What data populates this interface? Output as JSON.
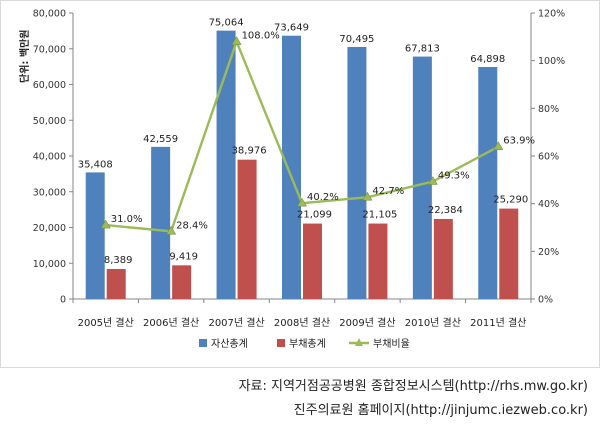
{
  "chart_data": {
    "type": "bar",
    "unit_label": "단위: 백만원",
    "categories": [
      "2005년 결산",
      "2006년 결산",
      "2007년 결산",
      "2008년 결산",
      "2009년 결산",
      "2010년 결산",
      "2011년 결산"
    ],
    "series": [
      {
        "name": "자산총계",
        "type": "bar",
        "axis": "left",
        "color": "#4f81bd",
        "values": [
          35408,
          42559,
          75064,
          73649,
          70495,
          67813,
          64898
        ],
        "labels": [
          "35,408",
          "42,559",
          "75,064",
          "73,649",
          "70,495",
          "67,813",
          "64,898"
        ]
      },
      {
        "name": "부채총계",
        "type": "bar",
        "axis": "left",
        "color": "#c0504d",
        "values": [
          8389,
          9419,
          38976,
          21099,
          21105,
          22384,
          25290
        ],
        "labels": [
          "8,389",
          "9,419",
          "38,976",
          "21,099",
          "21,105",
          "22,384",
          "25,290"
        ]
      },
      {
        "name": "부채비율",
        "type": "line",
        "axis": "right",
        "color": "#9bbb59",
        "values": [
          31.0,
          28.4,
          108.0,
          40.2,
          42.7,
          49.3,
          63.9
        ],
        "labels": [
          "31.0%",
          "28.4%",
          "108.0%",
          "40.2%",
          "42.7%",
          "49.3%",
          "63.9%"
        ]
      }
    ],
    "y_left": {
      "min": 0,
      "max": 80000,
      "ticks": [
        0,
        10000,
        20000,
        30000,
        40000,
        50000,
        60000,
        70000,
        80000
      ],
      "tick_labels": [
        "0",
        "10,000",
        "20,000",
        "30,000",
        "40,000",
        "50,000",
        "60,000",
        "70,000",
        "80,000"
      ]
    },
    "y_right": {
      "min": 0,
      "max": 120,
      "ticks": [
        0,
        20,
        40,
        60,
        80,
        100,
        120
      ],
      "tick_labels": [
        "0%",
        "20%",
        "40%",
        "60%",
        "80%",
        "100%",
        "120%"
      ]
    },
    "legend_position": "bottom"
  },
  "source": {
    "line1": "자료: 지역거점공공병원 종합정보시스템(http://rhs.mw.go.kr)",
    "line2": "진주의료원 홈페이지(http://jinjumc.iezweb.co.kr)"
  }
}
